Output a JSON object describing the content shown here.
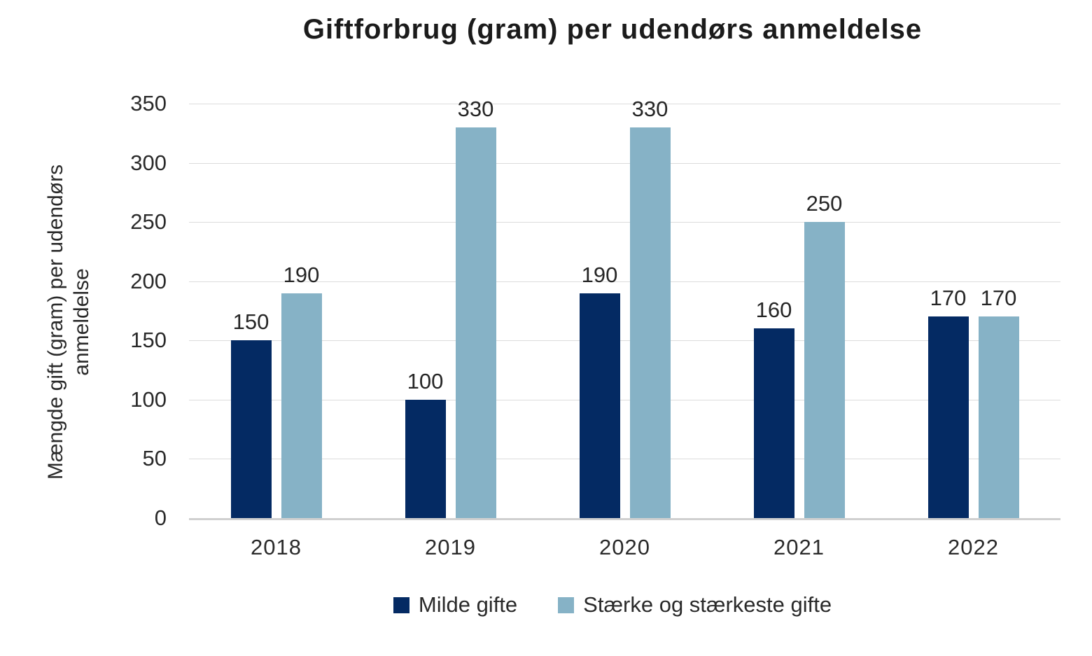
{
  "chart_data": {
    "type": "bar",
    "title": "Giftforbrug (gram) per udendørs anmeldelse",
    "ylabel": "Mængde gift (gram) per udendørs anmeldelse",
    "xlabel": "",
    "categories": [
      "2018",
      "2019",
      "2020",
      "2021",
      "2022"
    ],
    "series": [
      {
        "name": "Milde gifte",
        "color": "#042a63",
        "values": [
          150,
          100,
          190,
          160,
          170
        ]
      },
      {
        "name": "Stærke og stærkeste gifte",
        "color": "#86b2c6",
        "values": [
          190,
          330,
          330,
          250,
          170
        ]
      }
    ],
    "ylim": [
      0,
      350
    ],
    "ytick_step": 50,
    "grid": true,
    "data_labels": true,
    "legend_position": "bottom"
  },
  "style": {
    "grid_color": "#dcdcdc",
    "axis_color": "#d0d0d0",
    "text_color": "#262626",
    "background": "#ffffff"
  }
}
